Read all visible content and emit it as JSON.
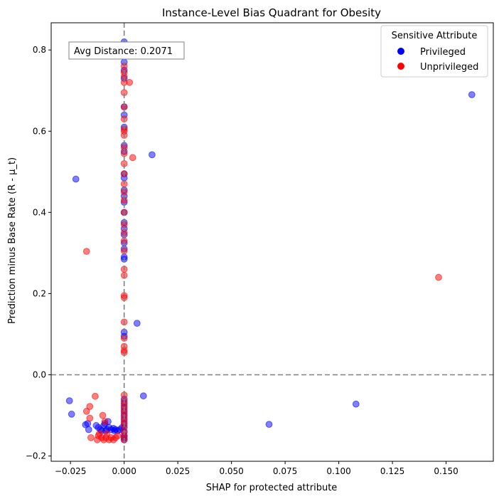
{
  "chart_data": {
    "type": "scatter",
    "title": "Instance-Level Bias Quadrant for Obesity",
    "xlabel": "SHAP for protected attribute",
    "ylabel": "Prediction minus Base Rate (R - μ_t)",
    "xlim": [
      -0.034,
      0.172
    ],
    "ylim": [
      -0.213,
      0.867
    ],
    "xticks": [
      -0.025,
      0.0,
      0.025,
      0.05,
      0.075,
      0.1,
      0.125,
      0.15
    ],
    "xtick_labels": [
      "−0.025",
      "0.000",
      "0.025",
      "0.050",
      "0.075",
      "0.100",
      "0.125",
      "0.150"
    ],
    "yticks": [
      -0.2,
      0.0,
      0.2,
      0.4,
      0.6,
      0.8
    ],
    "ytick_labels": [
      "−0.2",
      "0.0",
      "0.2",
      "0.4",
      "0.6",
      "0.8"
    ],
    "reference_lines": {
      "x": 0.0,
      "y": 0.0,
      "style": "dashed",
      "color": "#808080"
    },
    "annotation": "Avg Distance: 0.2071",
    "legend": {
      "title": "Sensitive Attribute",
      "placement": "top-right",
      "entries": [
        {
          "label": "Privileged",
          "color": "#0000ff"
        },
        {
          "label": "Unprivileged",
          "color": "#ff0000"
        }
      ]
    },
    "series": [
      {
        "name": "Privileged",
        "color": "#0000ff",
        "points": [
          [
            0.0,
            0.82
          ],
          [
            0.0,
            0.77
          ],
          [
            0.0,
            0.75
          ],
          [
            0.0,
            0.73
          ],
          [
            0.0,
            0.66
          ],
          [
            0.0,
            0.64
          ],
          [
            0.0,
            0.61
          ],
          [
            0.0,
            0.565
          ],
          [
            0.0,
            0.55
          ],
          [
            0.0,
            0.495
          ],
          [
            0.0,
            0.485
          ],
          [
            0.0,
            0.455
          ],
          [
            0.0,
            0.44
          ],
          [
            0.0,
            0.425
          ],
          [
            0.0,
            0.4
          ],
          [
            0.0,
            0.375
          ],
          [
            0.0,
            0.36
          ],
          [
            0.0,
            0.345
          ],
          [
            0.0,
            0.325
          ],
          [
            0.0,
            0.31
          ],
          [
            0.0,
            0.29
          ],
          [
            0.0,
            0.285
          ],
          [
            0.0,
            0.105
          ],
          [
            0.0,
            0.095
          ],
          [
            0.0,
            -0.06
          ],
          [
            0.0,
            -0.07
          ],
          [
            0.0,
            -0.08
          ],
          [
            0.0,
            -0.09
          ],
          [
            0.0,
            -0.1
          ],
          [
            0.0,
            -0.11
          ],
          [
            0.0,
            -0.12
          ],
          [
            0.0,
            -0.13
          ],
          [
            0.0,
            -0.14
          ],
          [
            0.0,
            -0.15
          ],
          [
            0.0,
            -0.155
          ],
          [
            0.0,
            -0.16
          ],
          [
            -0.0225,
            0.482
          ],
          [
            0.013,
            0.542
          ],
          [
            0.006,
            0.127
          ],
          [
            0.009,
            -0.052
          ],
          [
            0.162,
            0.69
          ],
          [
            0.108,
            -0.072
          ],
          [
            0.0675,
            -0.122
          ],
          [
            -0.0255,
            -0.064
          ],
          [
            -0.0245,
            -0.097
          ],
          [
            -0.018,
            -0.123
          ],
          [
            -0.017,
            -0.12
          ],
          [
            -0.0165,
            -0.135
          ],
          [
            -0.013,
            -0.125
          ],
          [
            -0.012,
            -0.13
          ],
          [
            -0.011,
            -0.135
          ],
          [
            -0.0095,
            -0.125
          ],
          [
            -0.009,
            -0.12
          ],
          [
            -0.008,
            -0.135
          ],
          [
            -0.0075,
            -0.115
          ],
          [
            -0.007,
            -0.13
          ],
          [
            -0.006,
            -0.135
          ],
          [
            -0.005,
            -0.132
          ],
          [
            -0.0045,
            -0.138
          ],
          [
            -0.004,
            -0.135
          ],
          [
            -0.003,
            -0.138
          ],
          [
            -0.002,
            -0.135
          ],
          [
            -0.001,
            -0.13
          ],
          [
            -0.0105,
            -0.138
          ],
          [
            -0.0085,
            -0.138
          ]
        ]
      },
      {
        "name": "Unprivileged",
        "color": "#ff0000",
        "points": [
          [
            0.0,
            0.8
          ],
          [
            0.0,
            0.76
          ],
          [
            0.0,
            0.745
          ],
          [
            0.0,
            0.735
          ],
          [
            0.0,
            0.72
          ],
          [
            0.0,
            0.695
          ],
          [
            0.0,
            0.66
          ],
          [
            0.0,
            0.63
          ],
          [
            0.0,
            0.605
          ],
          [
            0.0,
            0.6
          ],
          [
            0.0,
            0.59
          ],
          [
            0.0,
            0.56
          ],
          [
            0.0,
            0.545
          ],
          [
            0.0,
            0.52
          ],
          [
            0.0,
            0.495
          ],
          [
            0.0,
            0.47
          ],
          [
            0.0,
            0.45
          ],
          [
            0.0,
            0.43
          ],
          [
            0.0,
            0.4
          ],
          [
            0.0,
            0.37
          ],
          [
            0.0,
            0.35
          ],
          [
            0.0,
            0.33
          ],
          [
            0.0,
            0.305
          ],
          [
            0.0,
            0.26
          ],
          [
            0.0,
            0.245
          ],
          [
            0.0,
            0.195
          ],
          [
            0.0,
            0.19
          ],
          [
            0.0,
            0.13
          ],
          [
            0.0,
            0.09
          ],
          [
            0.0,
            0.07
          ],
          [
            0.0,
            0.06
          ],
          [
            0.0,
            0.055
          ],
          [
            0.0,
            -0.05
          ],
          [
            0.0,
            -0.065
          ],
          [
            0.0,
            -0.075
          ],
          [
            0.0,
            -0.085
          ],
          [
            0.0,
            -0.095
          ],
          [
            0.0,
            -0.105
          ],
          [
            0.0,
            -0.115
          ],
          [
            0.0,
            -0.125
          ],
          [
            0.0,
            -0.14
          ],
          [
            0.0,
            -0.15
          ],
          [
            0.0,
            -0.16
          ],
          [
            0.0025,
            0.72
          ],
          [
            0.004,
            0.535
          ],
          [
            -0.0175,
            0.304
          ],
          [
            0.1465,
            0.24
          ],
          [
            -0.0135,
            -0.053
          ],
          [
            -0.016,
            -0.078
          ],
          [
            -0.0175,
            -0.09
          ],
          [
            -0.016,
            -0.107
          ],
          [
            -0.0155,
            -0.155
          ],
          [
            -0.0125,
            -0.16
          ],
          [
            -0.012,
            -0.15
          ],
          [
            -0.0105,
            -0.155
          ],
          [
            -0.01,
            -0.1
          ],
          [
            -0.0095,
            -0.16
          ],
          [
            -0.009,
            -0.115
          ],
          [
            -0.0085,
            -0.155
          ],
          [
            -0.008,
            -0.145
          ],
          [
            -0.007,
            -0.16
          ],
          [
            -0.006,
            -0.155
          ],
          [
            -0.005,
            -0.16
          ],
          [
            -0.004,
            -0.155
          ],
          [
            -0.003,
            -0.15
          ],
          [
            -0.0115,
            -0.145
          ]
        ]
      }
    ]
  }
}
